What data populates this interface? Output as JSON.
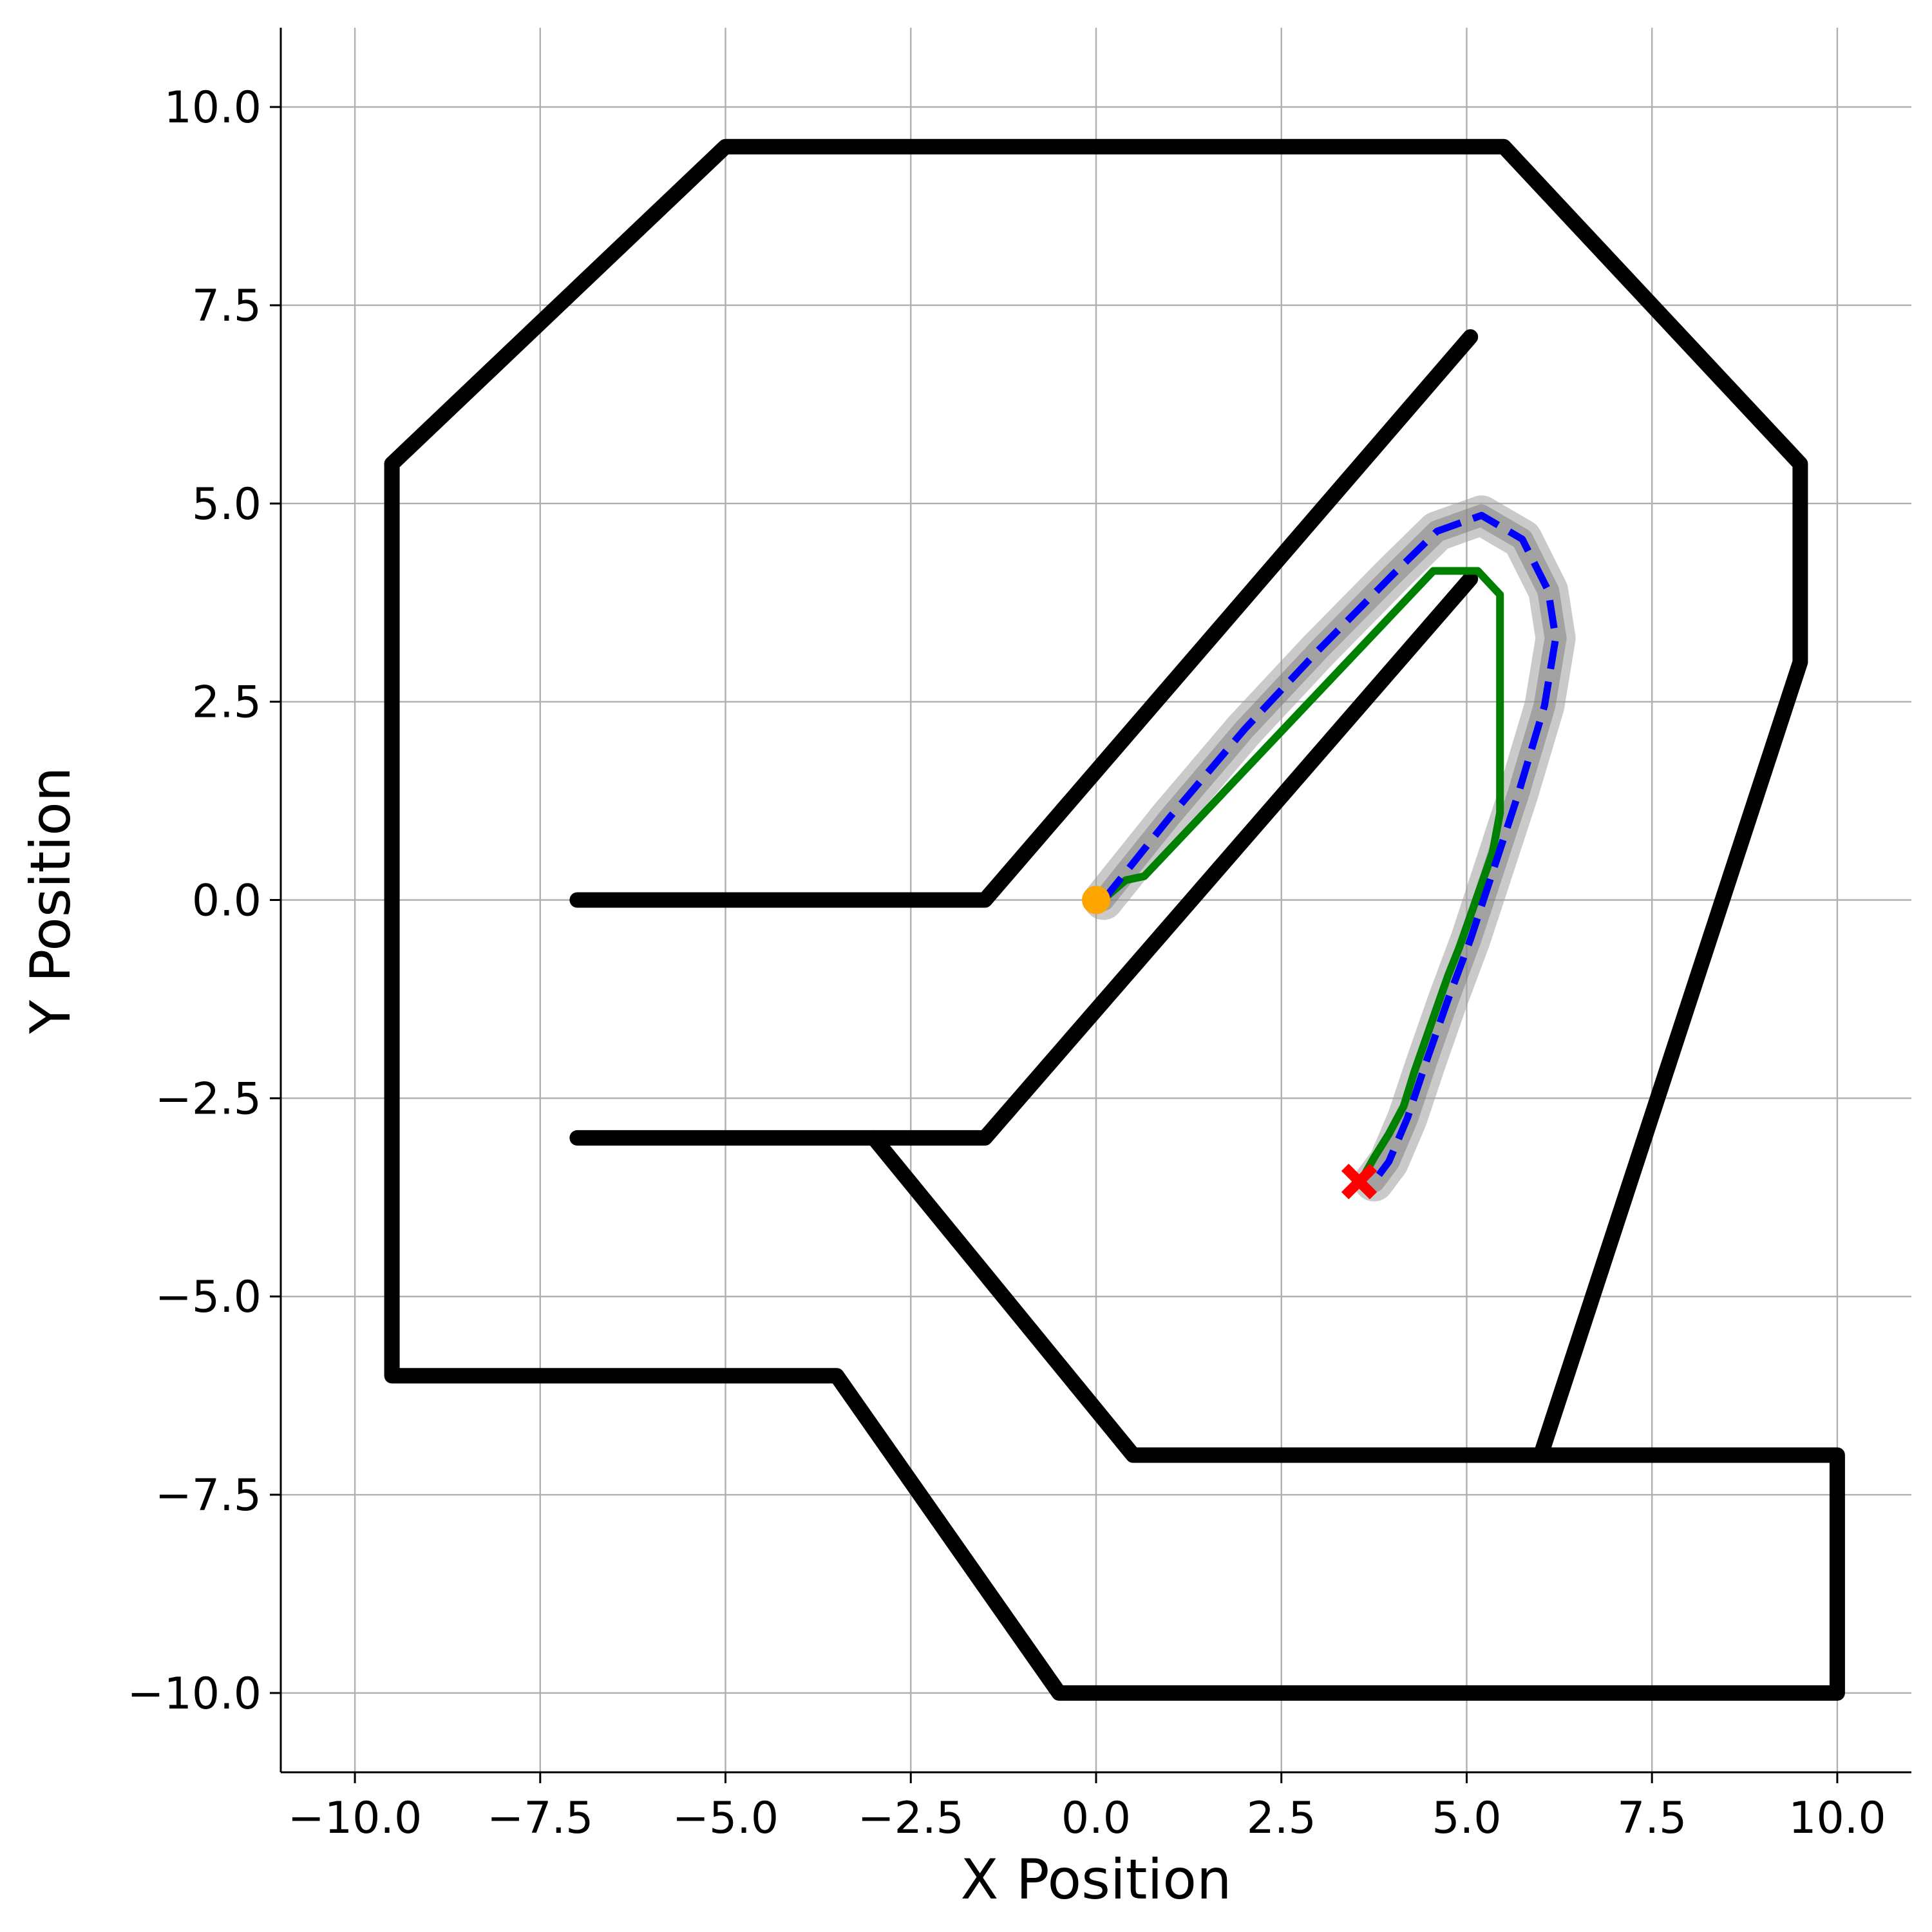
{
  "chart_data": {
    "type": "line",
    "title": "",
    "xlabel": "X Position",
    "ylabel": "Y Position",
    "xlim": [
      -11,
      11
    ],
    "ylim": [
      -11,
      11
    ],
    "xticks": [
      -10,
      -7.5,
      -5,
      -2.5,
      0,
      2.5,
      5,
      7.5,
      10
    ],
    "yticks": [
      -10,
      -7.5,
      -5,
      -2.5,
      0,
      2.5,
      5,
      7.5,
      10
    ],
    "xtick_labels": [
      "−10.0",
      "−7.5",
      "−5.0",
      "−2.5",
      "0.0",
      "2.5",
      "5.0",
      "7.5",
      "10.0"
    ],
    "ytick_labels": [
      "−10.0",
      "−7.5",
      "−5.0",
      "−2.5",
      "0.0",
      "2.5",
      "5.0",
      "7.5",
      "10.0"
    ],
    "grid": true,
    "walls_color": "#000000",
    "walls": [
      [
        [
          -9.5,
          5.5
        ],
        [
          -5,
          9.5
        ],
        [
          5.5,
          9.5
        ],
        [
          9.5,
          5.5
        ],
        [
          9.5,
          3
        ],
        [
          6,
          -7
        ]
      ],
      [
        [
          -9.5,
          5.5
        ],
        [
          -9.5,
          -6
        ],
        [
          -3.5,
          -6
        ],
        [
          -0.5,
          -10
        ],
        [
          10,
          -10
        ],
        [
          10,
          -7
        ],
        [
          0.5,
          -7
        ],
        [
          -3,
          -3
        ]
      ],
      [
        [
          -7,
          0
        ],
        [
          -1.5,
          0
        ],
        [
          5.05,
          7.1
        ]
      ],
      [
        [
          -7,
          -3
        ],
        [
          -1.5,
          -3
        ],
        [
          5.05,
          4.05
        ]
      ]
    ],
    "series": [
      {
        "color": "#0000ff",
        "style": "dashed",
        "x": [
          0.1,
          1,
          2,
          3,
          4,
          4.6,
          5.2,
          5.75,
          6.1,
          6.2,
          6.05,
          5.7,
          5.35,
          5.05,
          4.75,
          4.45,
          4.2,
          3.95,
          3.75
        ],
        "y": [
          0,
          1.05,
          2.15,
          3.15,
          4.1,
          4.65,
          4.85,
          4.55,
          3.9,
          3.3,
          2.45,
          1.35,
          0.35,
          -0.5,
          -1.25,
          -2.05,
          -2.75,
          -3.3,
          -3.55
        ]
      },
      {
        "color": "#008000",
        "style": "solid",
        "x": [
          0.15,
          0.4,
          0.65,
          4.55,
          5.15,
          5.45,
          5.45,
          5.35,
          5.2,
          5.05,
          4.9,
          4.75,
          4.6,
          4.45,
          4.3,
          4.15,
          3.95,
          3.75,
          3.6
        ],
        "y": [
          0.05,
          0.25,
          0.3,
          4.15,
          4.15,
          3.85,
          1.1,
          0.6,
          0.2,
          -0.2,
          -0.6,
          -0.95,
          -1.35,
          -1.75,
          -2.15,
          -2.6,
          -2.95,
          -3.25,
          -3.5
        ]
      }
    ],
    "band_color": "#9e9e9e",
    "markers": [
      {
        "shape": "circle",
        "color": "#ffa500",
        "x": 0,
        "y": 0
      },
      {
        "shape": "x",
        "color": "#ff0000",
        "x": 3.55,
        "y": -3.55
      }
    ]
  }
}
